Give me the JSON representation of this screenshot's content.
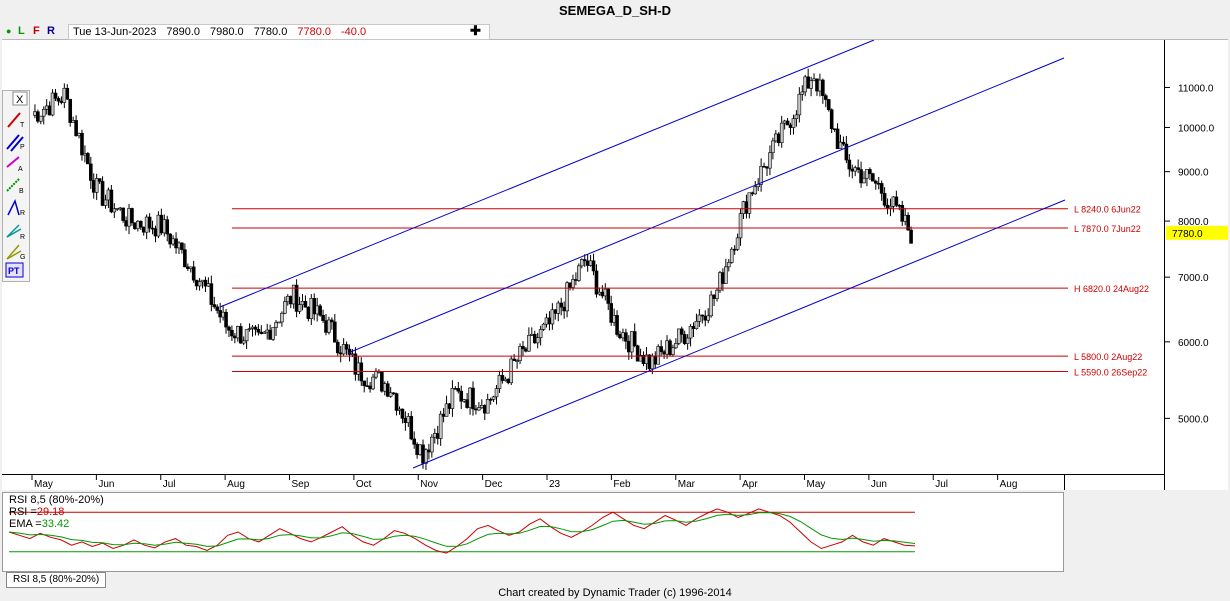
{
  "title": "SEMEGA_D_SH-D",
  "toolbar": {
    "letters": [
      "L",
      "F",
      "R"
    ]
  },
  "quote": {
    "date": "Tue 13-Jun-2023",
    "open": "7890.0",
    "high": "7980.0",
    "low": "7780.0",
    "close": "7780.0",
    "change": "-40.0"
  },
  "icons": [
    "trendline-icon",
    "parallel-icon",
    "alt-icon",
    "b-icon",
    "r-icon",
    "retrace-icon",
    "gann-icon",
    "pt-icon"
  ],
  "footer": "Chart created by Dynamic Trader  (c) 1996-2014",
  "rsi_tab": "RSI 8,5 (80%-20%)",
  "colors": {
    "bull_candle": "#c8c8c8",
    "bear_candle": "#000000",
    "channel": "#0000cc",
    "level": "#cc0000",
    "last_price_bg": "#ffff00",
    "rsi_line": "#cc0000",
    "ema_line": "#009900"
  },
  "chart_data": {
    "type": "candlestick",
    "title": "SEMEGA_D_SH-D",
    "y_axis": {
      "scale": "log",
      "range": [
        4400,
        12200
      ],
      "ticks": [
        "5000.0",
        "6000.0",
        "7000.0",
        "8000.0",
        "9000.0",
        "10000.0",
        "11000.0"
      ]
    },
    "x_axis": {
      "ticks": [
        "May",
        "Jun",
        "Jul",
        "Aug",
        "Sep",
        "Oct",
        "Nov",
        "Dec",
        "23",
        "Feb",
        "Mar",
        "Apr",
        "May",
        "Jun",
        "Jul",
        "Aug"
      ]
    },
    "last_price": "7780.0",
    "price_path": [
      [
        "May",
        10300
      ],
      [
        "May",
        10800
      ],
      [
        "Jun",
        8600
      ],
      [
        "Jun",
        8000
      ],
      [
        "Jul",
        7900
      ],
      [
        "Jul",
        7100
      ],
      [
        "Aug",
        6200
      ],
      [
        "Aug",
        6000
      ],
      [
        "Sep",
        6700
      ],
      [
        "Sep",
        6300
      ],
      [
        "Oct",
        5600
      ],
      [
        "Oct",
        5400
      ],
      [
        "Nov",
        4600
      ],
      [
        "Nov",
        5300
      ],
      [
        "Dec",
        5200
      ],
      [
        "Dec",
        5800
      ],
      [
        "23",
        6300
      ],
      [
        "23",
        7300
      ],
      [
        "Feb",
        6200
      ],
      [
        "Feb",
        5700
      ],
      [
        "Mar",
        6100
      ],
      [
        "Mar",
        6700
      ],
      [
        "Apr",
        8500
      ],
      [
        "Apr",
        9800
      ],
      [
        "May",
        11400
      ],
      [
        "May",
        9200
      ],
      [
        "Jun",
        8700
      ],
      [
        "Jun",
        7780
      ]
    ],
    "levels": [
      {
        "label": "L 8240.0 6Jun22",
        "value": 8240
      },
      {
        "label": "L 7870.0 7Jun22",
        "value": 7870
      },
      {
        "label": "H 6820.0 24Aug22",
        "value": 6820
      },
      {
        "label": "L 5800.0 2Aug22",
        "value": 5800
      },
      {
        "label": "L 5590.0 26Sep22",
        "value": 5590
      }
    ],
    "rsi": {
      "header": "RSI 8,5 (80%-20%)",
      "rsi_label": "RSI =",
      "rsi_value": "29.18",
      "ema_label": "EMA =",
      "ema_value": "33.42",
      "bounds": [
        80,
        20
      ],
      "series": [
        50,
        45,
        40,
        48,
        42,
        38,
        30,
        35,
        28,
        33,
        25,
        30,
        38,
        30,
        26,
        35,
        40,
        30,
        28,
        22,
        30,
        45,
        50,
        40,
        35,
        45,
        55,
        48,
        40,
        35,
        42,
        50,
        58,
        45,
        35,
        30,
        40,
        52,
        48,
        40,
        30,
        22,
        18,
        28,
        40,
        55,
        60,
        52,
        45,
        50,
        62,
        70,
        58,
        48,
        42,
        50,
        60,
        72,
        80,
        70,
        60,
        55,
        65,
        75,
        68,
        60,
        70,
        78,
        85,
        80,
        72,
        78,
        85,
        80,
        75,
        65,
        50,
        35,
        25,
        30,
        35,
        45,
        35,
        30,
        40,
        35,
        30,
        29
      ]
    }
  }
}
